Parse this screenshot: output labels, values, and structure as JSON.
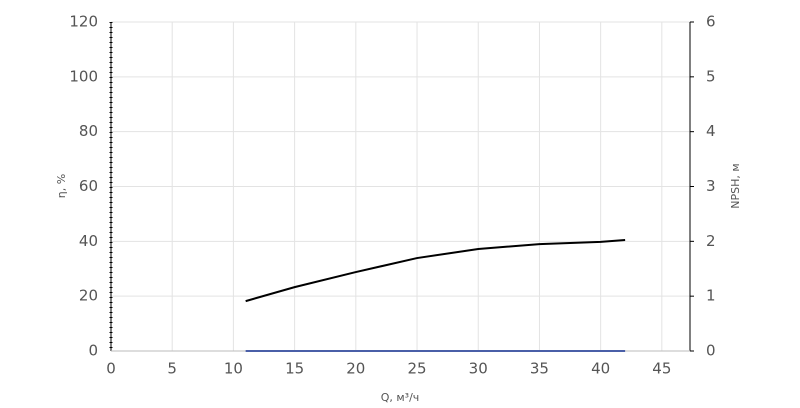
{
  "chart_data": {
    "type": "line",
    "x_label": "Q, м³/ч",
    "y_label": "η, %",
    "y2_label": "NPSH, м",
    "x": [
      11,
      15,
      20,
      25,
      30,
      35,
      40,
      42
    ],
    "series": [
      {
        "color": "#000000",
        "values": [
          18.2,
          23.3,
          28.8,
          33.9,
          37.2,
          39.0,
          39.8,
          40.5
        ]
      },
      {
        "color": "#4a5fa8",
        "axis": "y2",
        "values": [
          0,
          0,
          0,
          0,
          0,
          0,
          0,
          0
        ]
      }
    ],
    "xlim": [
      0,
      47.3
    ],
    "xticks": [
      0,
      5,
      10,
      15,
      20,
      25,
      30,
      35,
      40,
      45
    ],
    "ylim": [
      0,
      120
    ],
    "yticks": [
      0,
      20,
      40,
      60,
      80,
      100,
      120
    ],
    "y2lim": [
      0,
      6
    ],
    "y2ticks": [
      0,
      1,
      2,
      3,
      4,
      5,
      6
    ],
    "grid": true
  }
}
